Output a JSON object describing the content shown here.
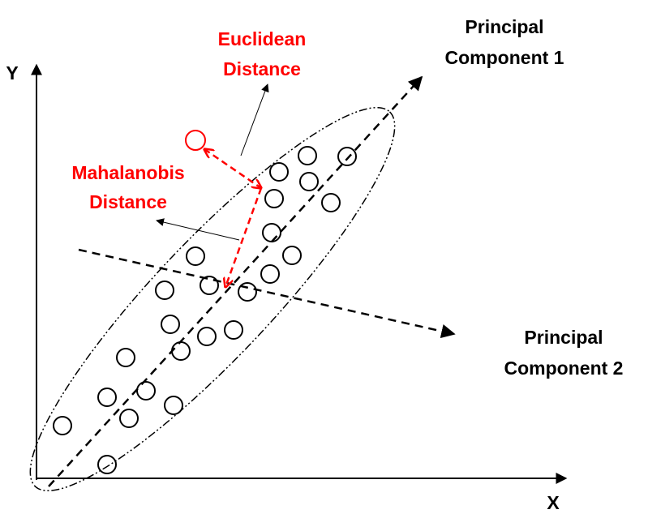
{
  "axes": {
    "y_label": "Y",
    "x_label": "X"
  },
  "principal_component_1": {
    "lines": [
      "Principal",
      "Component 1"
    ]
  },
  "principal_component_2": {
    "lines": [
      "Principal",
      "Component 2"
    ]
  },
  "euclidean_distance": {
    "lines": [
      "Euclidean",
      "Distance"
    ]
  },
  "mahalanobis_distance": {
    "lines": [
      "Mahalanobis",
      "Distance"
    ]
  }
}
